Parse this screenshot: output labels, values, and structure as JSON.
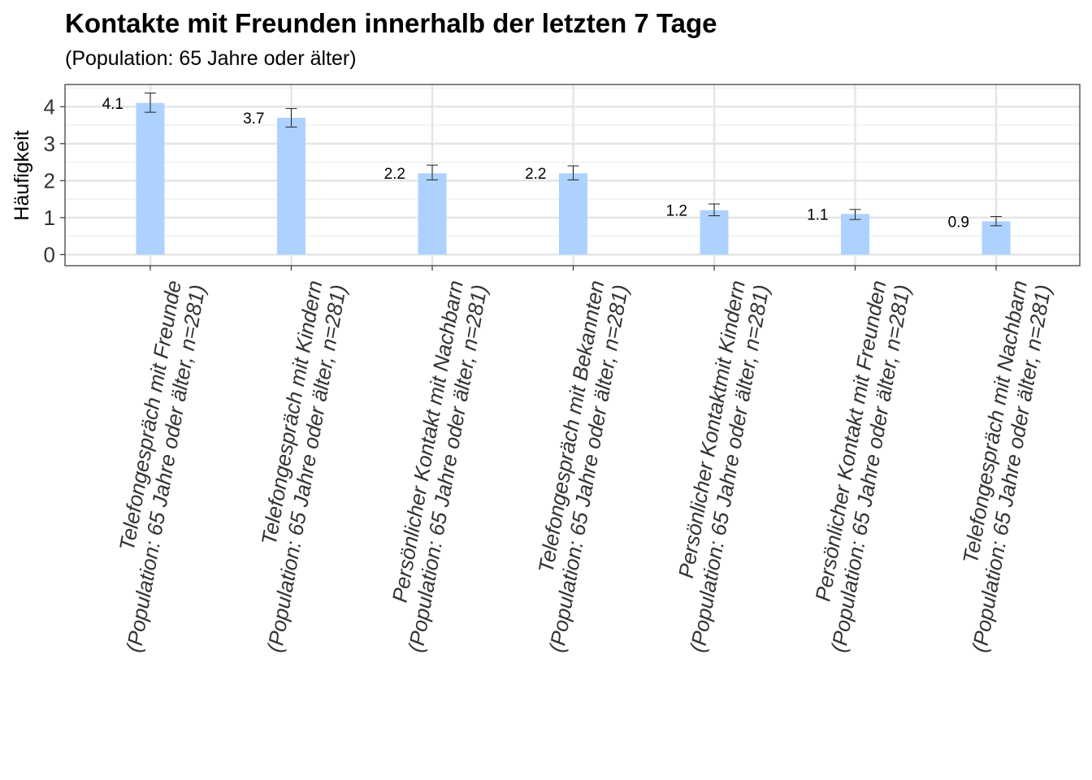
{
  "chart_data": {
    "type": "bar",
    "title": "Kontakte mit Freunden innerhalb der letzten 7 Tage",
    "subtitle": "(Population: 65 Jahre oder älter)",
    "xlabel": "",
    "ylabel": "Häufigkeit",
    "ylim": [
      -0.3,
      4.6
    ],
    "yticks": [
      0,
      1,
      2,
      3,
      4
    ],
    "ytick_labels": [
      "0",
      "1",
      "2",
      "3",
      "4"
    ],
    "grid": true,
    "bar_color": "#add2ff",
    "categories": [
      [
        "Telefongespräch mit Freunde",
        "(Population: 65 Jahre oder älter, n=281)"
      ],
      [
        "Telefongespräch mit Kindern",
        "(Population: 65 Jahre oder älter, n=281)"
      ],
      [
        "Persönlicher Kontakt mit Nachbarn",
        "(Population: 65 Jahre oder älter, n=281)"
      ],
      [
        "Telefongespräch mit Bekannten",
        "(Population: 65 Jahre oder älter, n=281)"
      ],
      [
        "Persönlicher Kontaktmit Kindern",
        "(Population: 65 Jahre oder älter, n=281)"
      ],
      [
        "Persönlicher Kontakt mit Freunden",
        "(Population: 65 Jahre oder älter, n=281)"
      ],
      [
        "Telefongespräch mit Nachbarn",
        "(Population: 65 Jahre oder älter, n=281)"
      ]
    ],
    "values": [
      4.1,
      3.7,
      2.2,
      2.2,
      1.2,
      1.1,
      0.9
    ],
    "value_labels": [
      "4.1",
      "3.7",
      "2.2",
      "2.2",
      "1.2",
      "1.1",
      "0.9"
    ],
    "error_low": [
      3.85,
      3.45,
      2.02,
      2.02,
      1.05,
      0.95,
      0.78
    ],
    "error_high": [
      4.37,
      3.95,
      2.42,
      2.4,
      1.37,
      1.22,
      1.03
    ]
  }
}
